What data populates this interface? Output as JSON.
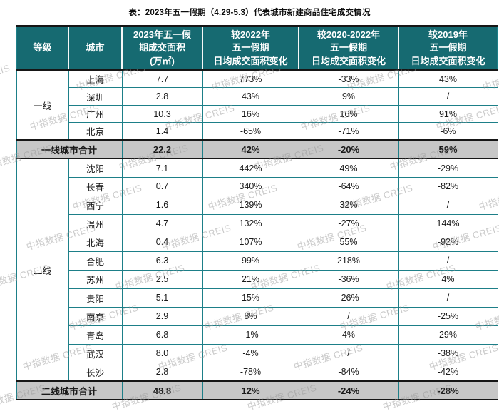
{
  "page": {
    "title": "表：2023年五一假期（4.29-5.3）代表城市新建商品住宅成交情况"
  },
  "watermark": {
    "text": "中指数据 CREIS"
  },
  "colors": {
    "header_bg": "#166a71",
    "grid_line": "#1d7f88",
    "total_row_bg": "#c7c7c7",
    "dark_border": "#161616",
    "header_text": "#ffffff"
  },
  "chart_data": {
    "type": "table",
    "title": "表：2023年五一假期（4.29-5.3）代表城市新建商品住宅成交情况",
    "columns": [
      "等级",
      "城市",
      "2023年五一假期成交面积(万㎡)",
      "较2022年五一假期日均成交面积变化",
      "较2020-2022年五一假期日均成交面积变化",
      "较2019年五一假期日均成交面积变化"
    ],
    "header_lines": [
      "等级",
      "城市",
      "2023年五一假\n期成交面积\n(万㎡)",
      "较2022年\n五一假期\n日均成交面积变化",
      "较2020-2022年\n五一假期\n日均成交面积变化",
      "较2019年\n五一假期\n日均成交面积变化"
    ],
    "groups": [
      {
        "label": "一线",
        "rows": [
          {
            "city": "上海",
            "values": [
              "7.7",
              "773%",
              "-33%",
              "43%"
            ]
          },
          {
            "city": "深圳",
            "values": [
              "2.8",
              "43%",
              "9%",
              "/"
            ]
          },
          {
            "city": "广州",
            "values": [
              "10.3",
              "16%",
              "16%",
              "91%"
            ]
          },
          {
            "city": "北京",
            "values": [
              "1.4",
              "-65%",
              "-71%",
              "-6%"
            ]
          }
        ],
        "total": {
          "label": "一线城市合计",
          "values": [
            "22.2",
            "42%",
            "-20%",
            "59%"
          ]
        }
      },
      {
        "label": "二线",
        "rows": [
          {
            "city": "沈阳",
            "values": [
              "7.1",
              "442%",
              "49%",
              "-29%"
            ]
          },
          {
            "city": "长春",
            "values": [
              "0.7",
              "340%",
              "-64%",
              "-82%"
            ]
          },
          {
            "city": "西宁",
            "values": [
              "1.6",
              "139%",
              "32%",
              "/"
            ]
          },
          {
            "city": "温州",
            "values": [
              "4.7",
              "132%",
              "-27%",
              "144%"
            ]
          },
          {
            "city": "北海",
            "values": [
              "0.4",
              "107%",
              "55%",
              "-92%"
            ]
          },
          {
            "city": "合肥",
            "values": [
              "6.3",
              "99%",
              "218%",
              "/"
            ]
          },
          {
            "city": "苏州",
            "values": [
              "2.5",
              "21%",
              "-36%",
              "4%"
            ]
          },
          {
            "city": "贵阳",
            "values": [
              "5.1",
              "15%",
              "-26%",
              "/"
            ]
          },
          {
            "city": "南京",
            "values": [
              "2.9",
              "8%",
              "/",
              "-25%"
            ]
          },
          {
            "city": "青岛",
            "values": [
              "6.8",
              "-1%",
              "4%",
              "29%"
            ]
          },
          {
            "city": "武汉",
            "values": [
              "8.0",
              "-4%",
              "/",
              "-38%"
            ]
          },
          {
            "city": "长沙",
            "values": [
              "2.8",
              "-78%",
              "-84%",
              "-42%"
            ]
          }
        ],
        "total": {
          "label": "二线城市合计",
          "values": [
            "48.8",
            "12%",
            "-24%",
            "-28%"
          ]
        }
      }
    ]
  }
}
